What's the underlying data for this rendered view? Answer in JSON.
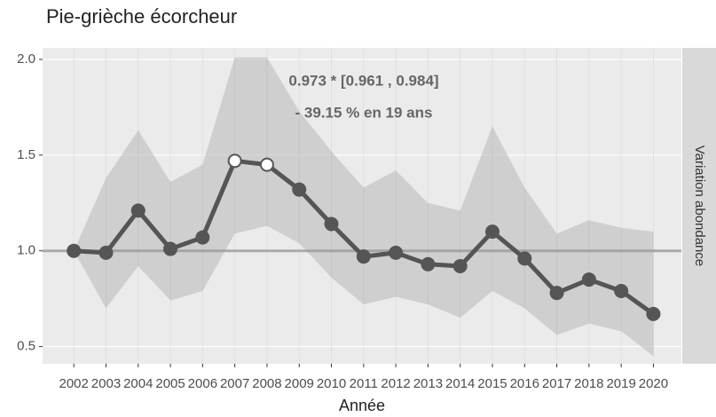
{
  "chart_data": {
    "type": "line",
    "title": "Pie-grièche écorcheur",
    "xlabel": "Année",
    "facet_label": "Variation abondance",
    "annotations": [
      "0.973 *  [0.961 , 0.984]",
      "- 39.15 % en 19 ans"
    ],
    "x": [
      2002,
      2003,
      2004,
      2005,
      2006,
      2007,
      2008,
      2009,
      2010,
      2011,
      2012,
      2013,
      2014,
      2015,
      2016,
      2017,
      2018,
      2019,
      2020
    ],
    "values": [
      1.0,
      0.99,
      1.21,
      1.01,
      1.07,
      1.47,
      1.45,
      1.32,
      1.14,
      0.97,
      0.99,
      0.93,
      0.92,
      1.1,
      0.96,
      0.78,
      0.85,
      0.79,
      0.67
    ],
    "upper": [
      1.0,
      1.38,
      1.63,
      1.36,
      1.45,
      2.01,
      2.01,
      1.73,
      1.52,
      1.33,
      1.42,
      1.25,
      1.21,
      1.65,
      1.33,
      1.09,
      1.16,
      1.12,
      1.1
    ],
    "lower": [
      1.0,
      0.7,
      0.92,
      0.74,
      0.79,
      1.09,
      1.13,
      1.04,
      0.86,
      0.72,
      0.76,
      0.72,
      0.65,
      0.79,
      0.7,
      0.56,
      0.62,
      0.58,
      0.45
    ],
    "point_fill": [
      "#555555",
      "#555555",
      "#555555",
      "#555555",
      "#555555",
      "#ffffff",
      "#ffffff",
      "#555555",
      "#555555",
      "#555555",
      "#555555",
      "#555555",
      "#555555",
      "#555555",
      "#555555",
      "#555555",
      "#555555",
      "#555555",
      "#555555"
    ],
    "color": "#555555",
    "band_color": "#bdbdbd",
    "reference_line": 1.0,
    "xlim": [
      2001.03,
      2020.87
    ],
    "ylim": [
      0.41,
      2.06
    ],
    "xticks": [
      2002,
      2003,
      2004,
      2005,
      2006,
      2007,
      2008,
      2009,
      2010,
      2011,
      2012,
      2013,
      2014,
      2015,
      2016,
      2017,
      2018,
      2019,
      2020
    ],
    "yticks": [
      {
        "value": 0.5,
        "label": "0.5"
      },
      {
        "value": 1.0,
        "label": "1.0"
      },
      {
        "value": 1.5,
        "label": "1.5"
      },
      {
        "value": 2.0,
        "label": "2.0"
      }
    ],
    "grid": true
  }
}
